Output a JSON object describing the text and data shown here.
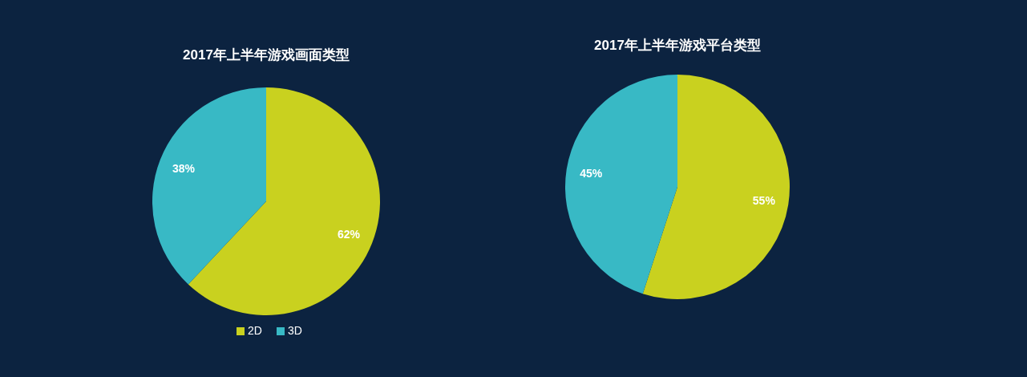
{
  "chart_data": [
    {
      "type": "pie",
      "title": "2017年上半年游戏画面类型",
      "categories": [
        "2D",
        "3D"
      ],
      "values": [
        62,
        38
      ],
      "colors": [
        "#c9d11f",
        "#38b9c5"
      ],
      "value_labels": [
        "62%",
        "38%"
      ],
      "legend": "bottom"
    },
    {
      "type": "pie",
      "title": "2017年上半年游戏平台类型",
      "categories": [
        null,
        null
      ],
      "values": [
        55,
        45
      ],
      "colors": [
        "#c9d11f",
        "#38b9c5"
      ],
      "value_labels": [
        "55%",
        "45%"
      ],
      "legend": false
    }
  ]
}
